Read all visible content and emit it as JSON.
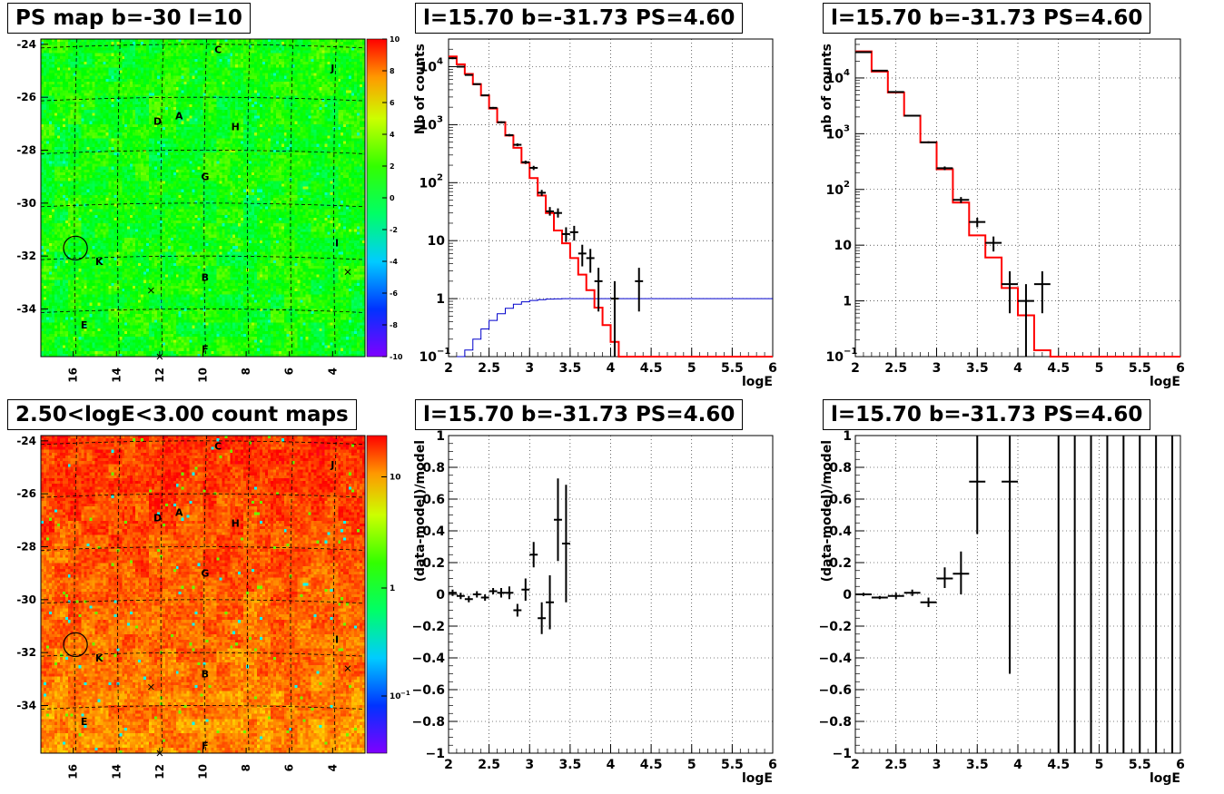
{
  "chart_data": [
    {
      "id": "ps_map",
      "type": "heatmap",
      "title": "PS map b=-30 l=10",
      "xlim": [
        17.5,
        2.5
      ],
      "ylim": [
        -35.8,
        -23.8
      ],
      "x_ticks": [
        16,
        14,
        12,
        10,
        8,
        6,
        4
      ],
      "y_ticks": [
        -24,
        -26,
        -28,
        -30,
        -32,
        -34
      ],
      "colorbar": {
        "min": -10,
        "max": 10,
        "scale": "linear",
        "ticks": [
          -10,
          -8,
          -6,
          -4,
          -2,
          0,
          2,
          4,
          6,
          8,
          10
        ]
      },
      "labels": [
        {
          "text": "C",
          "x": 9.3,
          "y": -24.2
        },
        {
          "text": "J",
          "x": 4.0,
          "y": -24.9
        },
        {
          "text": "D",
          "x": 12.1,
          "y": -26.9
        },
        {
          "text": "A",
          "x": 11.1,
          "y": -26.7
        },
        {
          "text": "H",
          "x": 8.5,
          "y": -27.1
        },
        {
          "text": "G",
          "x": 9.9,
          "y": -29.0
        },
        {
          "text": "I",
          "x": 3.8,
          "y": -31.5
        },
        {
          "text": "K",
          "x": 14.8,
          "y": -32.2
        },
        {
          "text": "B",
          "x": 9.9,
          "y": -32.8
        },
        {
          "text": "E",
          "x": 15.5,
          "y": -34.6
        },
        {
          "text": "F",
          "x": 9.9,
          "y": -35.5
        }
      ],
      "crosses": [
        {
          "x": 12.4,
          "y": -33.3
        },
        {
          "x": 3.3,
          "y": -32.6
        },
        {
          "x": 12.0,
          "y": -35.8
        }
      ],
      "circle": {
        "x": 15.9,
        "y": -31.7,
        "r": 0.55
      }
    },
    {
      "id": "spec_a",
      "type": "line",
      "title": "l=15.70 b=-31.73 PS=4.60",
      "xlabel": "logE",
      "ylabel": "Nb of counts",
      "xlim": [
        2,
        6
      ],
      "ylim": [
        0.1,
        30000
      ],
      "yscale": "log",
      "grid": true,
      "x_ticks": [
        2,
        2.5,
        3,
        3.5,
        4,
        4.5,
        5,
        5.5,
        6
      ],
      "y_ticks": [
        {
          "v": 0.1,
          "l": "10"
        },
        {
          "v": 1,
          "l": "1"
        },
        {
          "v": 10,
          "l": "10"
        },
        {
          "v": 100,
          "l": "10"
        },
        {
          "v": 1000,
          "l": "10"
        },
        {
          "v": 10000,
          "l": "10"
        }
      ],
      "y_tick_exps": [
        "−1",
        "",
        "",
        "2",
        "3",
        "4"
      ],
      "model_step": {
        "color": "#ff0000",
        "edges": [
          2,
          2.1,
          2.2,
          2.3,
          2.4,
          2.5,
          2.6,
          2.7,
          2.8,
          2.9,
          3.0,
          3.1,
          3.2,
          3.3,
          3.4,
          3.5,
          3.6,
          3.7,
          3.8,
          3.9,
          4.0,
          4.1,
          4.2,
          6.0
        ],
        "values": [
          15000,
          11000,
          7500,
          5000,
          3200,
          1900,
          1100,
          650,
          400,
          220,
          120,
          60,
          30,
          15,
          9,
          5,
          2.6,
          1.4,
          0.7,
          0.35,
          0.18,
          0.1,
          0.1
        ]
      },
      "bkg_step": {
        "color": "#0000cc",
        "edges": [
          2.1,
          2.2,
          2.3,
          2.4,
          2.5,
          2.6,
          2.7,
          2.8,
          2.9,
          3.0,
          3.1,
          3.2,
          3.3,
          3.4,
          3.5,
          6.0
        ],
        "values": [
          0.1,
          0.13,
          0.2,
          0.3,
          0.42,
          0.55,
          0.68,
          0.8,
          0.88,
          0.93,
          0.96,
          0.98,
          0.99,
          1.0,
          1.0
        ]
      },
      "data": [
        {
          "x": 2.05,
          "y": 14000,
          "xe": 0.05,
          "lo": 13500,
          "hi": 14500
        },
        {
          "x": 2.15,
          "y": 10000,
          "xe": 0.05,
          "lo": 9700,
          "hi": 10300
        },
        {
          "x": 2.25,
          "y": 7200,
          "xe": 0.05,
          "lo": 7000,
          "hi": 7400
        },
        {
          "x": 2.35,
          "y": 5000,
          "xe": 0.05,
          "lo": 4850,
          "hi": 5150
        },
        {
          "x": 2.45,
          "y": 3200,
          "xe": 0.05,
          "lo": 3100,
          "hi": 3300
        },
        {
          "x": 2.55,
          "y": 1950,
          "xe": 0.05,
          "lo": 1880,
          "hi": 2020
        },
        {
          "x": 2.65,
          "y": 1100,
          "xe": 0.05,
          "lo": 1060,
          "hi": 1140
        },
        {
          "x": 2.75,
          "y": 660,
          "xe": 0.05,
          "lo": 630,
          "hi": 690
        },
        {
          "x": 2.85,
          "y": 450,
          "xe": 0.05,
          "lo": 425,
          "hi": 475
        },
        {
          "x": 2.95,
          "y": 225,
          "xe": 0.05,
          "lo": 210,
          "hi": 240
        },
        {
          "x": 3.05,
          "y": 180,
          "xe": 0.05,
          "lo": 165,
          "hi": 195
        },
        {
          "x": 3.15,
          "y": 67,
          "xe": 0.05,
          "lo": 59,
          "hi": 75
        },
        {
          "x": 3.25,
          "y": 32,
          "xe": 0.05,
          "lo": 27,
          "hi": 38
        },
        {
          "x": 3.35,
          "y": 30,
          "xe": 0.05,
          "lo": 25,
          "hi": 36
        },
        {
          "x": 3.45,
          "y": 13,
          "xe": 0.05,
          "lo": 9.5,
          "hi": 17
        },
        {
          "x": 3.55,
          "y": 14,
          "xe": 0.05,
          "lo": 10,
          "hi": 18
        },
        {
          "x": 3.65,
          "y": 6,
          "xe": 0.05,
          "lo": 3.6,
          "hi": 8.5
        },
        {
          "x": 3.75,
          "y": 5,
          "xe": 0.05,
          "lo": 2.8,
          "hi": 7.2
        },
        {
          "x": 3.85,
          "y": 2,
          "xe": 0.05,
          "lo": 0.6,
          "hi": 3.4
        },
        {
          "x": 4.05,
          "y": 1,
          "xe": 0.05,
          "lo": 0.1,
          "hi": 2.0
        },
        {
          "x": 4.35,
          "y": 2,
          "xe": 0.05,
          "lo": 0.6,
          "hi": 3.4
        }
      ]
    },
    {
      "id": "spec_b",
      "type": "line",
      "title": "l=15.70 b=-31.73 PS=4.60",
      "xlabel": "logE",
      "ylabel": "nb of counts",
      "xlim": [
        2,
        6
      ],
      "ylim": [
        0.1,
        50000
      ],
      "yscale": "log",
      "grid": true,
      "x_ticks": [
        2,
        2.5,
        3,
        3.5,
        4,
        4.5,
        5,
        5.5,
        6
      ],
      "y_ticks": [
        {
          "v": 0.1,
          "l": "10"
        },
        {
          "v": 1,
          "l": "1"
        },
        {
          "v": 10,
          "l": "10"
        },
        {
          "v": 100,
          "l": "10"
        },
        {
          "v": 1000,
          "l": "10"
        },
        {
          "v": 10000,
          "l": "10"
        }
      ],
      "y_tick_exps": [
        "−1",
        "",
        "",
        "2",
        "3",
        "4"
      ],
      "model_step": {
        "color": "#ff0000",
        "edges": [
          2,
          2.2,
          2.4,
          2.6,
          2.8,
          3.0,
          3.2,
          3.4,
          3.6,
          3.8,
          4.0,
          4.2,
          4.4,
          6.0
        ],
        "values": [
          30000,
          13000,
          5500,
          2100,
          700,
          230,
          58,
          15,
          6,
          1.7,
          0.55,
          0.13,
          0.1
        ]
      },
      "data": [
        {
          "x": 2.1,
          "y": 29000,
          "xe": 0.1,
          "lo": 28500,
          "hi": 29500
        },
        {
          "x": 2.3,
          "y": 13500,
          "xe": 0.1,
          "lo": 13200,
          "hi": 13800
        },
        {
          "x": 2.5,
          "y": 5600,
          "xe": 0.1,
          "lo": 5450,
          "hi": 5750
        },
        {
          "x": 2.7,
          "y": 2100,
          "xe": 0.1,
          "lo": 2030,
          "hi": 2170
        },
        {
          "x": 2.9,
          "y": 700,
          "xe": 0.1,
          "lo": 670,
          "hi": 730
        },
        {
          "x": 3.1,
          "y": 240,
          "xe": 0.1,
          "lo": 222,
          "hi": 258
        },
        {
          "x": 3.3,
          "y": 65,
          "xe": 0.1,
          "lo": 57,
          "hi": 73
        },
        {
          "x": 3.5,
          "y": 26,
          "xe": 0.1,
          "lo": 21,
          "hi": 31
        },
        {
          "x": 3.7,
          "y": 11,
          "xe": 0.1,
          "lo": 7.7,
          "hi": 14.3
        },
        {
          "x": 3.9,
          "y": 2,
          "xe": 0.1,
          "lo": 0.6,
          "hi": 3.4
        },
        {
          "x": 4.1,
          "y": 1,
          "xe": 0.1,
          "lo": 0.1,
          "hi": 2.0
        },
        {
          "x": 4.3,
          "y": 2,
          "xe": 0.1,
          "lo": 0.6,
          "hi": 3.4
        }
      ]
    },
    {
      "id": "count_map",
      "type": "heatmap",
      "title": "2.50<logE<3.00 count maps",
      "xlim": [
        17.5,
        2.5
      ],
      "ylim": [
        -35.8,
        -23.8
      ],
      "x_ticks": [
        16,
        14,
        12,
        10,
        8,
        6,
        4
      ],
      "y_ticks": [
        -24,
        -26,
        -28,
        -30,
        -32,
        -34
      ],
      "colorbar": {
        "scale": "log",
        "tick_labels": [
          "10",
          "1",
          "10"
        ],
        "tick_exps": [
          "",
          "",
          "−1"
        ]
      },
      "labels": [
        {
          "text": "C",
          "x": 9.3,
          "y": -24.2
        },
        {
          "text": "J",
          "x": 4.0,
          "y": -24.9
        },
        {
          "text": "D",
          "x": 12.1,
          "y": -26.9
        },
        {
          "text": "A",
          "x": 11.1,
          "y": -26.7
        },
        {
          "text": "H",
          "x": 8.5,
          "y": -27.1
        },
        {
          "text": "G",
          "x": 9.9,
          "y": -29.0
        },
        {
          "text": "I",
          "x": 3.8,
          "y": -31.5
        },
        {
          "text": "K",
          "x": 14.8,
          "y": -32.2
        },
        {
          "text": "B",
          "x": 9.9,
          "y": -32.8
        },
        {
          "text": "E",
          "x": 15.5,
          "y": -34.6
        },
        {
          "text": "F",
          "x": 9.9,
          "y": -35.5
        }
      ],
      "crosses": [
        {
          "x": 12.4,
          "y": -33.3
        },
        {
          "x": 3.3,
          "y": -32.6
        },
        {
          "x": 12.0,
          "y": -35.8
        }
      ],
      "circle": {
        "x": 15.9,
        "y": -31.7,
        "r": 0.55
      }
    },
    {
      "id": "resid_a",
      "type": "scatter",
      "title": "l=15.70 b=-31.73 PS=4.60",
      "xlabel": "logE",
      "ylabel": "(data-model)/model",
      "xlim": [
        2,
        6
      ],
      "ylim": [
        -1,
        1
      ],
      "grid": true,
      "x_ticks": [
        2,
        2.5,
        3,
        3.5,
        4,
        4.5,
        5,
        5.5,
        6
      ],
      "y_ticks": [
        -1,
        -0.8,
        -0.6,
        -0.4,
        -0.2,
        0,
        0.2,
        0.4,
        0.6,
        0.8,
        1
      ],
      "data": [
        {
          "x": 2.05,
          "y": 0.01,
          "xe": 0.05,
          "lo": -0.01,
          "hi": 0.03
        },
        {
          "x": 2.15,
          "y": -0.01,
          "xe": 0.05,
          "lo": -0.03,
          "hi": 0.01
        },
        {
          "x": 2.25,
          "y": -0.03,
          "xe": 0.05,
          "lo": -0.05,
          "hi": -0.01
        },
        {
          "x": 2.35,
          "y": 0.0,
          "xe": 0.05,
          "lo": -0.02,
          "hi": 0.02
        },
        {
          "x": 2.45,
          "y": -0.02,
          "xe": 0.05,
          "lo": -0.04,
          "hi": 0.0
        },
        {
          "x": 2.55,
          "y": 0.02,
          "xe": 0.05,
          "lo": 0.0,
          "hi": 0.04
        },
        {
          "x": 2.65,
          "y": 0.01,
          "xe": 0.05,
          "lo": -0.02,
          "hi": 0.04
        },
        {
          "x": 2.75,
          "y": 0.01,
          "xe": 0.05,
          "lo": -0.03,
          "hi": 0.05
        },
        {
          "x": 2.85,
          "y": -0.1,
          "xe": 0.05,
          "lo": -0.14,
          "hi": -0.06
        },
        {
          "x": 2.95,
          "y": 0.03,
          "xe": 0.05,
          "lo": -0.04,
          "hi": 0.1
        },
        {
          "x": 3.05,
          "y": 0.25,
          "xe": 0.05,
          "lo": 0.17,
          "hi": 0.33
        },
        {
          "x": 3.15,
          "y": -0.15,
          "xe": 0.05,
          "lo": -0.25,
          "hi": -0.05
        },
        {
          "x": 3.25,
          "y": -0.05,
          "xe": 0.05,
          "lo": -0.22,
          "hi": 0.12
        },
        {
          "x": 3.35,
          "y": 0.47,
          "xe": 0.05,
          "lo": 0.21,
          "hi": 0.73
        },
        {
          "x": 3.45,
          "y": 0.32,
          "xe": 0.05,
          "lo": -0.05,
          "hi": 0.69
        }
      ]
    },
    {
      "id": "resid_b",
      "type": "scatter",
      "title": "l=15.70 b=-31.73 PS=4.60",
      "xlabel": "logE",
      "ylabel": "(data-model)/model",
      "xlim": [
        2,
        6
      ],
      "ylim": [
        -1,
        1
      ],
      "grid": true,
      "x_ticks": [
        2,
        2.5,
        3,
        3.5,
        4,
        4.5,
        5,
        5.5,
        6
      ],
      "y_ticks": [
        -1,
        -0.8,
        -0.6,
        -0.4,
        -0.2,
        0,
        0.2,
        0.4,
        0.6,
        0.8,
        1
      ],
      "data": [
        {
          "x": 2.1,
          "y": 0.0,
          "xe": 0.1,
          "lo": -0.01,
          "hi": 0.01
        },
        {
          "x": 2.3,
          "y": -0.02,
          "xe": 0.1,
          "lo": -0.03,
          "hi": -0.01
        },
        {
          "x": 2.5,
          "y": -0.01,
          "xe": 0.1,
          "lo": -0.03,
          "hi": 0.01
        },
        {
          "x": 2.7,
          "y": 0.01,
          "xe": 0.1,
          "lo": -0.01,
          "hi": 0.03
        },
        {
          "x": 2.9,
          "y": -0.05,
          "xe": 0.1,
          "lo": -0.08,
          "hi": -0.02
        },
        {
          "x": 3.1,
          "y": 0.1,
          "xe": 0.1,
          "lo": 0.04,
          "hi": 0.17
        },
        {
          "x": 3.3,
          "y": 0.13,
          "xe": 0.1,
          "lo": 0.0,
          "hi": 0.27
        },
        {
          "x": 3.5,
          "y": 0.71,
          "xe": 0.1,
          "lo": 0.38,
          "hi": 1.0
        },
        {
          "x": 3.9,
          "y": 0.71,
          "xe": 0.1,
          "lo": -0.5,
          "hi": 1.0
        },
        {
          "x": 4.5,
          "y": null,
          "xe": 0,
          "lo": -1,
          "hi": 1
        },
        {
          "x": 4.7,
          "y": null,
          "xe": 0,
          "lo": -1,
          "hi": 1
        },
        {
          "x": 4.9,
          "y": null,
          "xe": 0,
          "lo": -1,
          "hi": 1
        },
        {
          "x": 5.1,
          "y": null,
          "xe": 0,
          "lo": -1,
          "hi": 1
        },
        {
          "x": 5.3,
          "y": null,
          "xe": 0,
          "lo": -1,
          "hi": 1
        },
        {
          "x": 5.5,
          "y": null,
          "xe": 0,
          "lo": -1,
          "hi": 1
        },
        {
          "x": 5.7,
          "y": null,
          "xe": 0,
          "lo": -1,
          "hi": 1
        },
        {
          "x": 5.9,
          "y": null,
          "xe": 0,
          "lo": -1,
          "hi": 1
        }
      ]
    }
  ]
}
